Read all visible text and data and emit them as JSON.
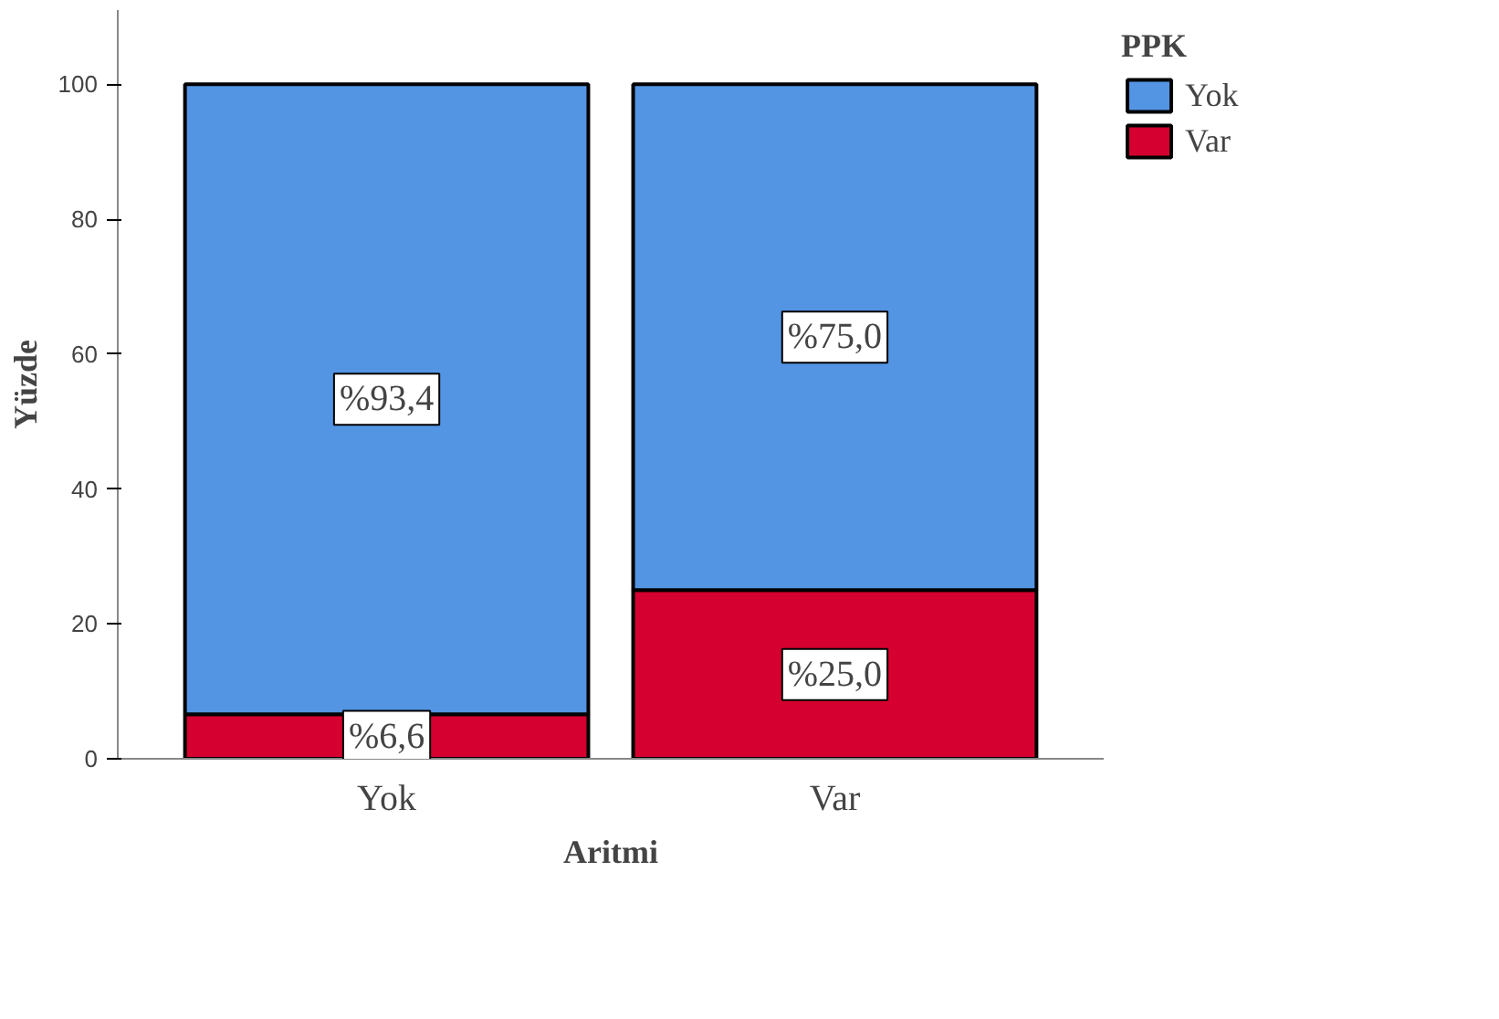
{
  "chart_data": {
    "type": "bar",
    "stacked": true,
    "xlabel": "Aritmi",
    "ylabel": "Yüzde",
    "legend_title": "PPK",
    "legend": "right",
    "categories": [
      "Yok",
      "Var"
    ],
    "series": [
      {
        "name": "Var",
        "color": "#d5002f",
        "values": [
          6.6,
          25.0
        ],
        "value_labels": [
          "%6,6",
          "%25,0"
        ]
      },
      {
        "name": "Yok",
        "color": "#5394e3",
        "values": [
          93.4,
          75.0
        ],
        "value_labels": [
          "%93,4",
          "%75,0"
        ]
      }
    ],
    "ylim": [
      0,
      111
    ],
    "yticks": [
      0,
      20,
      40,
      60,
      80,
      100
    ],
    "grid": false
  }
}
